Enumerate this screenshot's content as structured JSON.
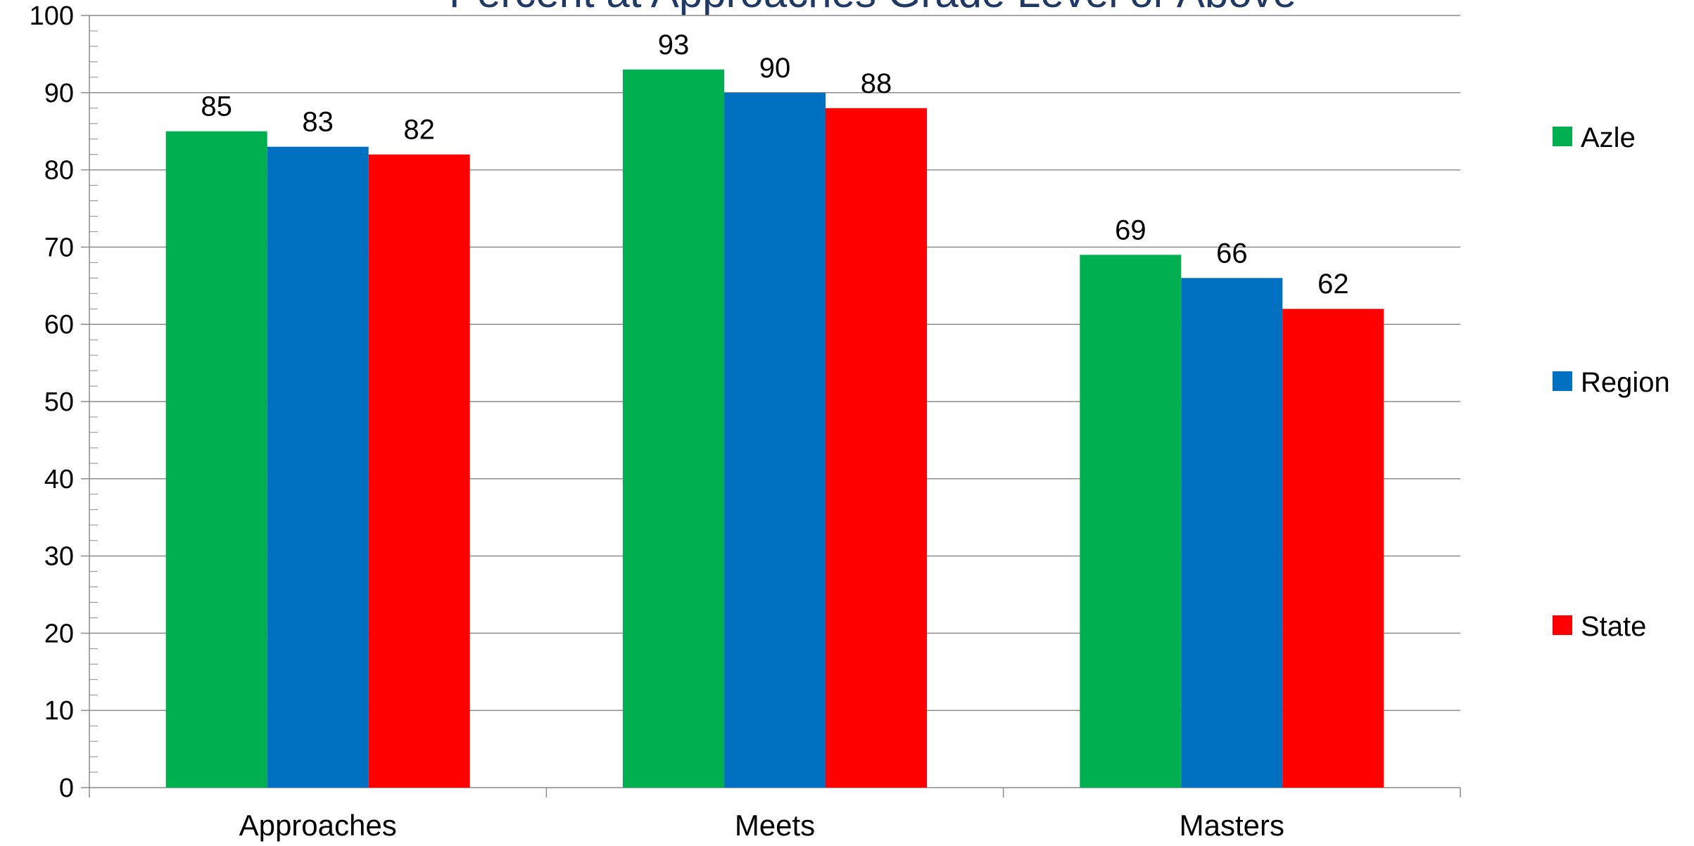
{
  "chart_data": {
    "type": "bar",
    "title": "Percent at Approaches Grade Level or Above",
    "categories": [
      "Approaches",
      "Meets",
      "Masters"
    ],
    "series": [
      {
        "name": "Azle",
        "values": [
          85,
          93,
          69
        ],
        "color": "#00b050"
      },
      {
        "name": "Region",
        "values": [
          83,
          90,
          66
        ],
        "color": "#0070c0"
      },
      {
        "name": "State",
        "values": [
          82,
          88,
          62
        ],
        "color": "#ff0000"
      }
    ],
    "ylim": [
      0,
      100
    ],
    "yticks": [
      0,
      10,
      20,
      30,
      40,
      50,
      60,
      70,
      80,
      90,
      100
    ],
    "grid": true,
    "legend": "right",
    "data_labels": true
  }
}
